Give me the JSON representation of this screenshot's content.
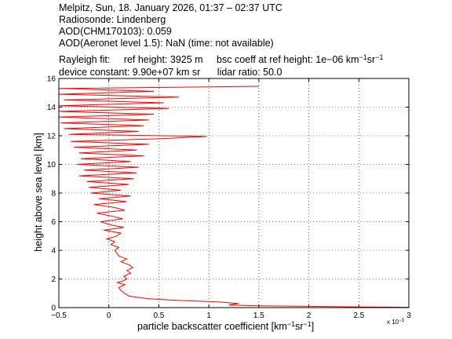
{
  "header": {
    "line1": "Melpitz, Sun, 18. January 2026, 01:37 – 02:37 UTC",
    "line2": "Radiosonde: Lindenberg",
    "line3": "AOD(CHM170103): 0.059",
    "line4": "AOD(Aeronet level 1.5): NaN   (time: not available)",
    "line5_a": "Rayleigh fit:",
    "line5_b": "ref height: 3925 m",
    "line5_c": "bsc coeff at ref height: 1e−06 km",
    "line5_unit1": "−1",
    "line5_unit2": "sr",
    "line5_unit3": "−1",
    "line6_a": "device constant: 9.90e+07 km sr",
    "line6_b": "lidar ratio: 50.0"
  },
  "chart_data": {
    "type": "line",
    "xlabel_text": "particle backscatter coefficient [km",
    "xlabel_exp1": "−1",
    "xlabel_mid": "sr",
    "xlabel_exp2": "−1",
    "xlabel_end": "]",
    "ylabel": "height above sea level [km]",
    "x_multiplier_base": "x 10",
    "x_multiplier_exp": "−3",
    "xlim": [
      -0.5,
      3
    ],
    "ylim": [
      0,
      16
    ],
    "xticks": [
      -0.5,
      0,
      0.5,
      1,
      1.5,
      2,
      2.5,
      3
    ],
    "xtick_labels": [
      "−0.5",
      "0",
      "0.5",
      "1",
      "1.5",
      "2",
      "2.5",
      "3"
    ],
    "yticks": [
      0,
      2,
      4,
      6,
      8,
      10,
      12,
      14,
      16
    ],
    "ytick_labels": [
      "0",
      "2",
      "4",
      "6",
      "8",
      "10",
      "12",
      "14",
      "16"
    ],
    "grid": true,
    "line_color": "#ff0000",
    "series": [
      {
        "points": [
          [
            3.0,
            0.02
          ],
          [
            2.5,
            0.05
          ],
          [
            1.9,
            0.1
          ],
          [
            1.5,
            0.12
          ],
          [
            1.2,
            0.18
          ],
          [
            1.3,
            0.28
          ],
          [
            1.1,
            0.4
          ],
          [
            0.7,
            0.5
          ],
          [
            0.4,
            0.62
          ],
          [
            0.2,
            0.8
          ],
          [
            0.16,
            1.0
          ],
          [
            0.12,
            1.2
          ],
          [
            0.1,
            1.4
          ],
          [
            0.16,
            1.6
          ],
          [
            0.08,
            1.75
          ],
          [
            0.14,
            1.85
          ],
          [
            0.18,
            2.0
          ],
          [
            0.15,
            2.2
          ],
          [
            0.22,
            2.4
          ],
          [
            0.18,
            2.6
          ],
          [
            0.24,
            2.8
          ],
          [
            0.2,
            3.0
          ],
          [
            0.12,
            3.2
          ],
          [
            0.18,
            3.4
          ],
          [
            0.1,
            3.6
          ],
          [
            0.08,
            3.8
          ],
          [
            0.06,
            4.0
          ],
          [
            0.1,
            4.2
          ],
          [
            0.02,
            4.4
          ],
          [
            0.06,
            4.6
          ],
          [
            -0.02,
            4.8
          ],
          [
            0.08,
            5.0
          ],
          [
            0.12,
            5.2
          ],
          [
            -0.05,
            5.4
          ],
          [
            0.15,
            5.6
          ],
          [
            0.0,
            5.8
          ],
          [
            -0.08,
            6.0
          ],
          [
            0.14,
            6.2
          ],
          [
            0.02,
            6.4
          ],
          [
            -0.12,
            6.6
          ],
          [
            0.16,
            6.8
          ],
          [
            0.05,
            7.0
          ],
          [
            -0.15,
            7.2
          ],
          [
            0.18,
            7.4
          ],
          [
            -0.1,
            7.6
          ],
          [
            0.22,
            7.8
          ],
          [
            -0.18,
            8.0
          ],
          [
            0.12,
            8.2
          ],
          [
            -0.2,
            8.4
          ],
          [
            0.2,
            8.6
          ],
          [
            -0.22,
            8.8
          ],
          [
            0.25,
            9.0
          ],
          [
            -0.3,
            9.2
          ],
          [
            0.28,
            9.4
          ],
          [
            -0.25,
            9.6
          ],
          [
            0.3,
            9.8
          ],
          [
            -0.32,
            10.0
          ],
          [
            0.22,
            10.2
          ],
          [
            -0.28,
            10.4
          ],
          [
            0.35,
            10.6
          ],
          [
            -0.3,
            10.8
          ],
          [
            0.28,
            11.0
          ],
          [
            -0.35,
            11.2
          ],
          [
            0.4,
            11.4
          ],
          [
            -0.38,
            11.6
          ],
          [
            0.55,
            11.8
          ],
          [
            0.98,
            11.95
          ],
          [
            -0.4,
            12.1
          ],
          [
            0.3,
            12.3
          ],
          [
            -0.45,
            12.5
          ],
          [
            0.35,
            12.7
          ],
          [
            -0.48,
            12.9
          ],
          [
            0.4,
            13.1
          ],
          [
            -0.5,
            13.3
          ],
          [
            0.45,
            13.5
          ],
          [
            -0.5,
            13.7
          ],
          [
            0.6,
            13.9
          ],
          [
            -0.5,
            14.1
          ],
          [
            0.55,
            14.3
          ],
          [
            -0.45,
            14.5
          ],
          [
            0.7,
            14.7
          ],
          [
            -0.5,
            14.9
          ],
          [
            0.45,
            15.1
          ],
          [
            -0.5,
            15.3
          ],
          [
            1.5,
            15.45
          ]
        ]
      }
    ]
  }
}
